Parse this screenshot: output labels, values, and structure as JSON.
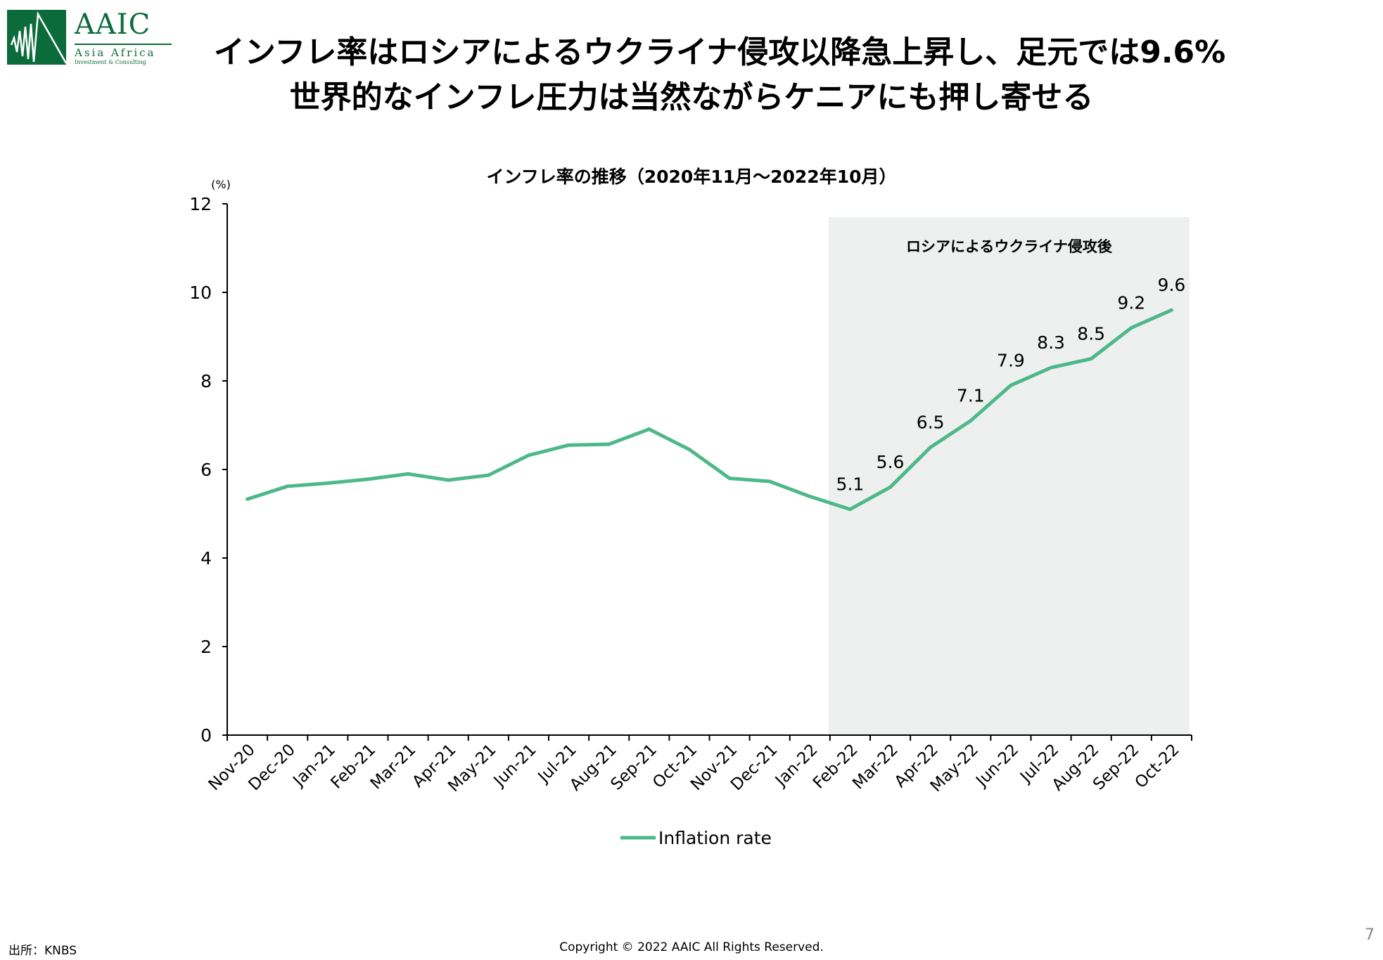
{
  "logo": {
    "brand": "AAIC",
    "line1": "Asia Africa",
    "line2": "Investment & Consulting"
  },
  "header": {
    "title_line1": "インフレ率はロシアによるウクライナ侵攻以降急上昇し、足元では9.6%",
    "title_line2": "世界的なインフレ圧力は当然ながらケニアにも押し寄せる"
  },
  "chart_data": {
    "type": "line",
    "title": "インフレ率の推移（2020年11月～2022年10月）",
    "ylabel": "(%)",
    "xlabel": "",
    "ylim": [
      0,
      12
    ],
    "yticks": [
      "0",
      "2",
      "4",
      "6",
      "8",
      "10",
      "12"
    ],
    "categories": [
      "Nov-20",
      "Dec-20",
      "Jan-21",
      "Feb-21",
      "Mar-21",
      "Apr-21",
      "May-21",
      "Jun-21",
      "Jul-21",
      "Aug-21",
      "Sep-21",
      "Oct-21",
      "Nov-21",
      "Dec-21",
      "Jan-22",
      "Feb-22",
      "Mar-22",
      "Apr-22",
      "May-22",
      "Jun-22",
      "Jul-22",
      "Aug-22",
      "Sep-22",
      "Oct-22"
    ],
    "series": [
      {
        "name": "Inflation rate",
        "color": "#4db88a",
        "values": [
          5.33,
          5.62,
          5.69,
          5.78,
          5.9,
          5.76,
          5.87,
          6.32,
          6.55,
          6.57,
          6.91,
          6.45,
          5.8,
          5.73,
          5.39,
          5.1,
          5.6,
          6.5,
          7.1,
          7.9,
          8.3,
          8.5,
          9.2,
          9.6
        ]
      }
    ],
    "data_labels": {
      "from_index": 15,
      "labels": [
        "5.1",
        "5.6",
        "6.5",
        "7.1",
        "7.9",
        "8.3",
        "8.5",
        "9.2",
        "9.6"
      ]
    },
    "shaded_region": {
      "from": "Feb-22",
      "to": "Oct-22",
      "label": "ロシアによるウクライナ侵攻後",
      "color": "#eef0ef"
    },
    "legend": "bottom",
    "grid": false
  },
  "footer": {
    "source": "出所：KNBS",
    "copyright": "Copyright © 2022 AAIC All Rights Reserved.",
    "page": "7"
  }
}
